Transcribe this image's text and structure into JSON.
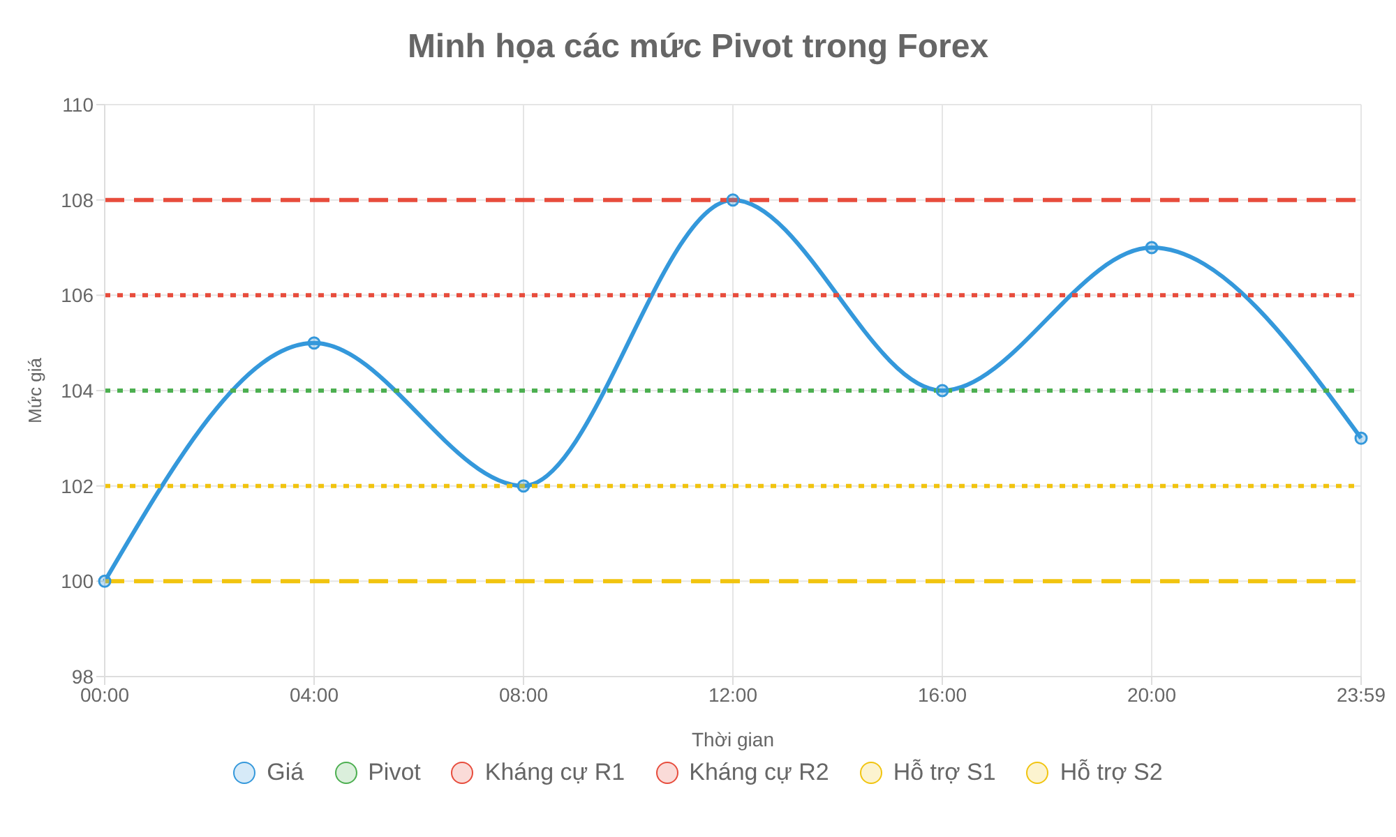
{
  "chart_data": {
    "type": "line",
    "title": "Minh họa các mức Pivot trong Forex",
    "xlabel": "Thời gian",
    "ylabel": "Mức giá",
    "categories": [
      "00:00",
      "04:00",
      "08:00",
      "12:00",
      "16:00",
      "20:00",
      "23:59"
    ],
    "series": [
      {
        "name": "Giá",
        "color": "#3498db",
        "values": [
          100,
          105,
          102,
          108,
          104,
          107,
          103
        ],
        "marker": "circle",
        "line_style": "solid"
      },
      {
        "name": "Pivot",
        "color": "#4caf50",
        "values": [
          104,
          104,
          104,
          104,
          104,
          104,
          104
        ],
        "marker": "none",
        "line_style": "dotted"
      },
      {
        "name": "Kháng cự R1",
        "color": "#e74c3c",
        "values": [
          106,
          106,
          106,
          106,
          106,
          106,
          106
        ],
        "marker": "none",
        "line_style": "dotted"
      },
      {
        "name": "Kháng cự R2",
        "color": "#e74c3c",
        "values": [
          108,
          108,
          108,
          108,
          108,
          108,
          108
        ],
        "marker": "none",
        "line_style": "dashed"
      },
      {
        "name": "Hỗ trợ S1",
        "color": "#f1c40f",
        "values": [
          102,
          102,
          102,
          102,
          102,
          102,
          102
        ],
        "marker": "none",
        "line_style": "dotted"
      },
      {
        "name": "Hỗ trợ S2",
        "color": "#f1c40f",
        "values": [
          100,
          100,
          100,
          100,
          100,
          100,
          100
        ],
        "marker": "none",
        "line_style": "dashed"
      }
    ],
    "ylim": [
      98,
      110
    ],
    "yticks": [
      98,
      100,
      102,
      104,
      106,
      108,
      110
    ],
    "grid": true,
    "legend": "bottom"
  }
}
